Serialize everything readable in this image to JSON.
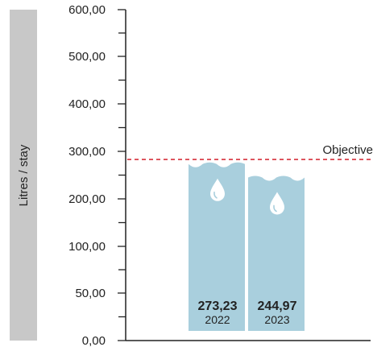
{
  "chart_data": {
    "type": "bar",
    "title": "",
    "xlabel": "",
    "ylabel": "Litres / stay",
    "y_tick_labels": [
      "0,00",
      "50,00",
      "100,00",
      "200,00",
      "300,00",
      "400,00",
      "500,00",
      "600,00"
    ],
    "y_tick_values": [
      0,
      50,
      100,
      200,
      300,
      400,
      500,
      600
    ],
    "ylim": [
      0,
      600
    ],
    "categories": [
      "2022",
      "2023"
    ],
    "values": [
      273.23,
      244.97
    ],
    "value_labels": [
      "273,23",
      "244,97"
    ],
    "objective": {
      "label": "Objective",
      "value": 283
    },
    "grid": false,
    "legend": "none"
  },
  "colors": {
    "bar": "#a9cfdd",
    "objective_line": "#d6303c",
    "axis": "#222222",
    "ylabel_band": "#c8c8c8",
    "text": "#222222",
    "drop": "#ffffff"
  },
  "icons": {
    "bar_marker": "water-drop-icon"
  }
}
